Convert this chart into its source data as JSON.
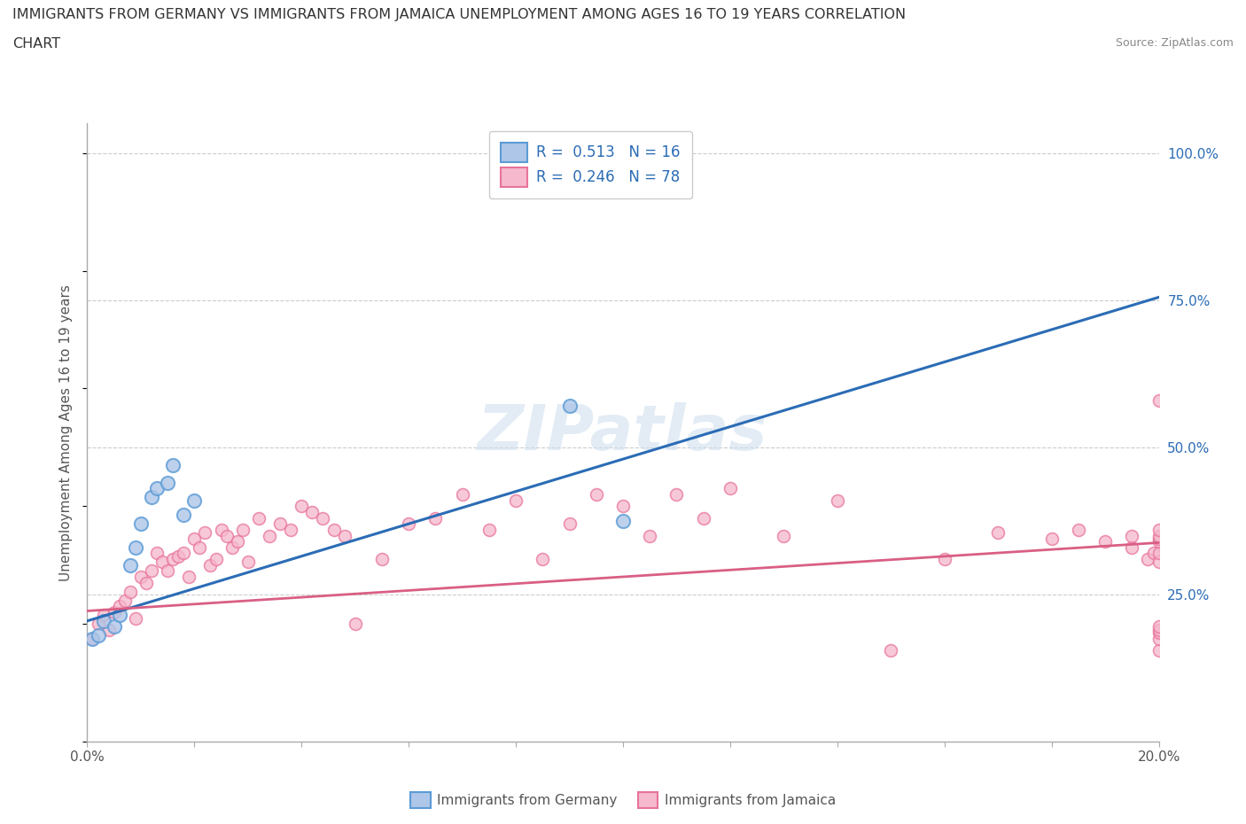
{
  "title_line1": "IMMIGRANTS FROM GERMANY VS IMMIGRANTS FROM JAMAICA UNEMPLOYMENT AMONG AGES 16 TO 19 YEARS CORRELATION",
  "title_line2": "CHART",
  "source": "Source: ZipAtlas.com",
  "ylabel": "Unemployment Among Ages 16 to 19 years",
  "xlim": [
    0.0,
    0.2
  ],
  "ylim": [
    0.0,
    1.05
  ],
  "xticks": [
    0.0,
    0.02,
    0.04,
    0.06,
    0.08,
    0.1,
    0.12,
    0.14,
    0.16,
    0.18,
    0.2
  ],
  "yticks_right": [
    0.25,
    0.5,
    0.75,
    1.0
  ],
  "ytick_labels_right": [
    "25.0%",
    "50.0%",
    "75.0%",
    "100.0%"
  ],
  "legend_r_germany": "0.513",
  "legend_n_germany": "16",
  "legend_r_jamaica": "0.246",
  "legend_n_jamaica": "78",
  "germany_color": "#aec6e8",
  "jamaica_color": "#f5b8cc",
  "germany_edge_color": "#5b9bd5",
  "jamaica_edge_color": "#e8739a",
  "germany_line_color": "#2b6cb5",
  "jamaica_line_color": "#d95f84",
  "watermark": "ZIPatlas",
  "germany_scatter_x": [
    0.001,
    0.002,
    0.003,
    0.005,
    0.006,
    0.008,
    0.009,
    0.01,
    0.012,
    0.013,
    0.015,
    0.016,
    0.018,
    0.02,
    0.09,
    0.1
  ],
  "germany_scatter_y": [
    0.175,
    0.18,
    0.205,
    0.195,
    0.215,
    0.3,
    0.33,
    0.37,
    0.415,
    0.43,
    0.44,
    0.47,
    0.385,
    0.41,
    0.57,
    0.375
  ],
  "jamaica_scatter_x": [
    0.001,
    0.002,
    0.003,
    0.004,
    0.005,
    0.006,
    0.007,
    0.008,
    0.009,
    0.01,
    0.011,
    0.012,
    0.013,
    0.014,
    0.015,
    0.016,
    0.017,
    0.018,
    0.019,
    0.02,
    0.021,
    0.022,
    0.023,
    0.024,
    0.025,
    0.026,
    0.027,
    0.028,
    0.029,
    0.03,
    0.032,
    0.034,
    0.036,
    0.038,
    0.04,
    0.042,
    0.044,
    0.046,
    0.048,
    0.05,
    0.055,
    0.06,
    0.065,
    0.07,
    0.075,
    0.08,
    0.085,
    0.09,
    0.095,
    0.1,
    0.105,
    0.11,
    0.115,
    0.12,
    0.13,
    0.14,
    0.15,
    0.16,
    0.17,
    0.18,
    0.185,
    0.19,
    0.195,
    0.195,
    0.198,
    0.199,
    0.2,
    0.2,
    0.2,
    0.2,
    0.2,
    0.2,
    0.2,
    0.2,
    0.2,
    0.2,
    0.2,
    0.2
  ],
  "jamaica_scatter_y": [
    0.175,
    0.2,
    0.215,
    0.19,
    0.22,
    0.23,
    0.24,
    0.255,
    0.21,
    0.28,
    0.27,
    0.29,
    0.32,
    0.305,
    0.29,
    0.31,
    0.315,
    0.32,
    0.28,
    0.345,
    0.33,
    0.355,
    0.3,
    0.31,
    0.36,
    0.35,
    0.33,
    0.34,
    0.36,
    0.305,
    0.38,
    0.35,
    0.37,
    0.36,
    0.4,
    0.39,
    0.38,
    0.36,
    0.35,
    0.2,
    0.31,
    0.37,
    0.38,
    0.42,
    0.36,
    0.41,
    0.31,
    0.37,
    0.42,
    0.4,
    0.35,
    0.42,
    0.38,
    0.43,
    0.35,
    0.41,
    0.155,
    0.31,
    0.355,
    0.345,
    0.36,
    0.34,
    0.33,
    0.35,
    0.31,
    0.32,
    0.155,
    0.175,
    0.185,
    0.19,
    0.195,
    0.58,
    0.305,
    0.32,
    0.34,
    0.345,
    0.35,
    0.36
  ],
  "germany_trendline_x": [
    0.0,
    0.2
  ],
  "germany_trendline_y": [
    0.205,
    0.755
  ],
  "jamaica_trendline_x": [
    0.0,
    0.2
  ],
  "jamaica_trendline_y": [
    0.222,
    0.338
  ],
  "background_color": "#ffffff",
  "grid_color": "#cccccc",
  "legend_text_color": "#2b6cb5",
  "axis_label_color": "#555555",
  "tick_label_color_x": "#555555",
  "tick_label_color_yr": "#2b6cb5"
}
